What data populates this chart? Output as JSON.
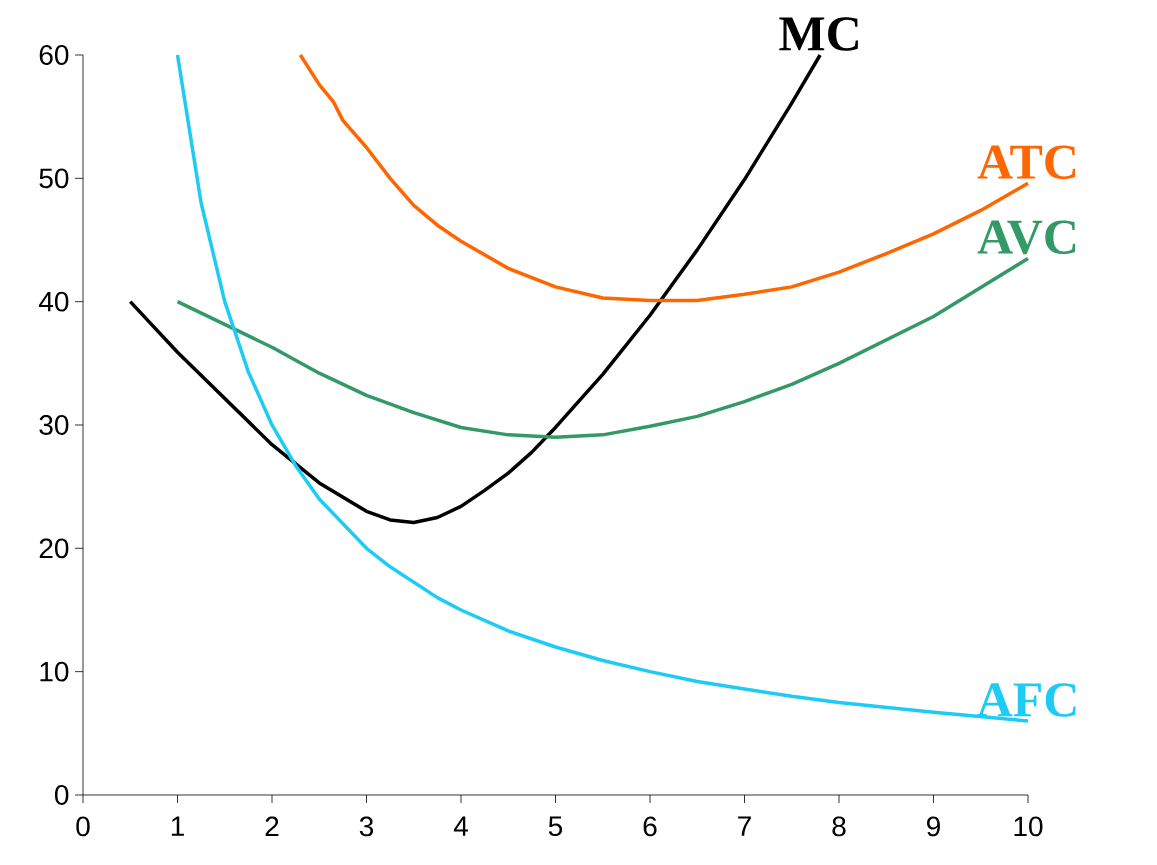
{
  "chart_data": {
    "type": "line",
    "xlim": [
      0,
      10
    ],
    "ylim": [
      0,
      60
    ],
    "xticks": [
      0,
      1,
      2,
      3,
      4,
      5,
      6,
      7,
      8,
      9,
      10
    ],
    "yticks": [
      0,
      10,
      20,
      30,
      40,
      50,
      60
    ],
    "grid": false,
    "legend": false,
    "marker": "none",
    "line_style": "solid",
    "series": [
      {
        "name": "MC",
        "color": "#000000",
        "x": [
          0.5,
          1,
          2,
          2.5,
          3,
          3.25,
          3.5,
          3.75,
          4,
          4.25,
          4.5,
          4.75,
          5,
          5.5,
          6,
          6.5,
          7,
          7.5,
          7.8
        ],
        "values": [
          40,
          35.9,
          28.4,
          25.3,
          23,
          22.3,
          22.1,
          22.5,
          23.4,
          24.7,
          26.1,
          27.8,
          29.8,
          34.1,
          38.9,
          44.2,
          49.9,
          56.1,
          60
        ]
      },
      {
        "name": "ATC",
        "color": "#ff6600",
        "x": [
          2.3,
          2.5,
          2.65,
          2.75,
          3,
          3.25,
          3.5,
          3.75,
          4,
          4.5,
          5,
          5.5,
          6,
          6.5,
          7,
          7.5,
          8,
          8.5,
          9,
          9.5,
          10
        ],
        "values": [
          60,
          57.6,
          56.2,
          54.7,
          52.5,
          50,
          47.8,
          46.2,
          44.9,
          42.7,
          41.2,
          40.3,
          40.1,
          40.1,
          40.6,
          41.2,
          42.4,
          43.9,
          45.5,
          47.4,
          49.6
        ]
      },
      {
        "name": "AVC",
        "color": "#339966",
        "x": [
          1,
          2,
          2.5,
          3,
          3.5,
          4,
          4.5,
          5,
          5.5,
          6,
          6.5,
          7,
          7.5,
          8,
          9,
          10
        ],
        "values": [
          40,
          36.3,
          34.2,
          32.4,
          31,
          29.8,
          29.2,
          29,
          29.2,
          29.9,
          30.7,
          31.9,
          33.3,
          35,
          38.8,
          43.5
        ]
      },
      {
        "name": "AFC",
        "color": "#1ecbf5",
        "x": [
          1,
          1.25,
          1.5,
          1.75,
          2,
          2.25,
          2.5,
          3,
          3.25,
          3.75,
          4,
          4.5,
          5,
          5.5,
          6,
          6.5,
          7,
          7.5,
          8,
          8.5,
          9,
          10
        ],
        "values": [
          60,
          48,
          40,
          34.3,
          30,
          26.7,
          24,
          20,
          18.5,
          16,
          15,
          13.3,
          12,
          10.9,
          10,
          9.2,
          8.6,
          8,
          7.5,
          7.1,
          6.7,
          6
        ]
      }
    ]
  }
}
